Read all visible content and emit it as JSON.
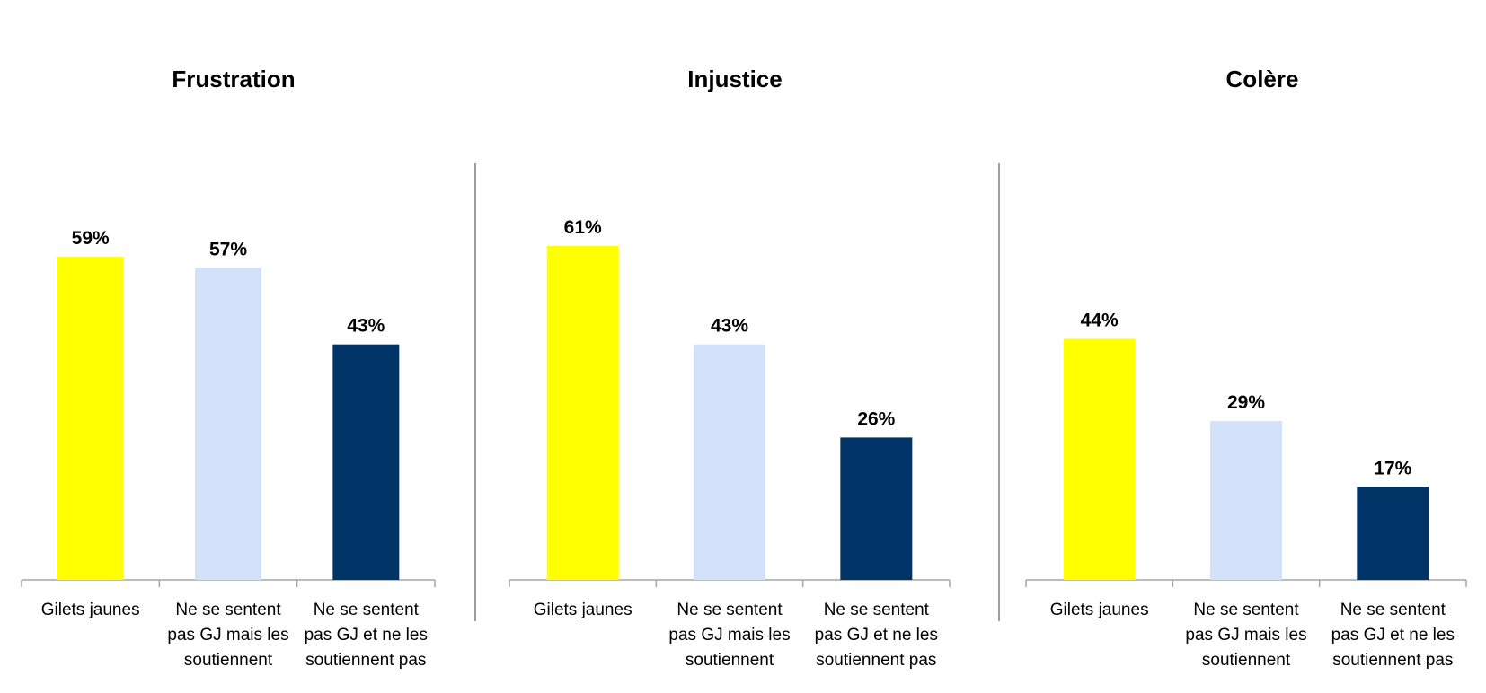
{
  "colors": {
    "gilets_jaunes": "#FFFF00",
    "soutiennent": "#D3E1FB",
    "soutiennent_pas": "#003366",
    "axis": "#a6a6a6",
    "divider": "#7f7f7f"
  },
  "chart_data": [
    {
      "type": "bar",
      "title": "Frustration",
      "categories": [
        [
          "Gilets jaunes"
        ],
        [
          "Ne se sentent",
          "pas GJ mais les",
          "soutiennent"
        ],
        [
          "Ne se sentent",
          "pas GJ et ne les",
          "soutiennent pas"
        ]
      ],
      "values": [
        59,
        57,
        43
      ],
      "value_labels": [
        "59%",
        "57%",
        "43%"
      ],
      "ylim": [
        0,
        75
      ],
      "grid": false,
      "legend": "none"
    },
    {
      "type": "bar",
      "title": "Injustice",
      "categories": [
        [
          "Gilets jaunes"
        ],
        [
          "Ne se sentent",
          "pas GJ mais les",
          "soutiennent"
        ],
        [
          "Ne se sentent",
          "pas GJ et ne les",
          "soutiennent pas"
        ]
      ],
      "values": [
        61,
        43,
        26
      ],
      "value_labels": [
        "61%",
        "43%",
        "26%"
      ],
      "ylim": [
        0,
        75
      ],
      "grid": false,
      "legend": "none"
    },
    {
      "type": "bar",
      "title": "Colère",
      "categories": [
        [
          "Gilets jaunes"
        ],
        [
          "Ne se sentent",
          "pas GJ mais les",
          "soutiennent"
        ],
        [
          "Ne se sentent",
          "pas GJ et ne les",
          "soutiennent pas"
        ]
      ],
      "values": [
        44,
        29,
        17
      ],
      "value_labels": [
        "44%",
        "29%",
        "17%"
      ],
      "ylim": [
        0,
        75
      ],
      "grid": false,
      "legend": "none"
    }
  ]
}
